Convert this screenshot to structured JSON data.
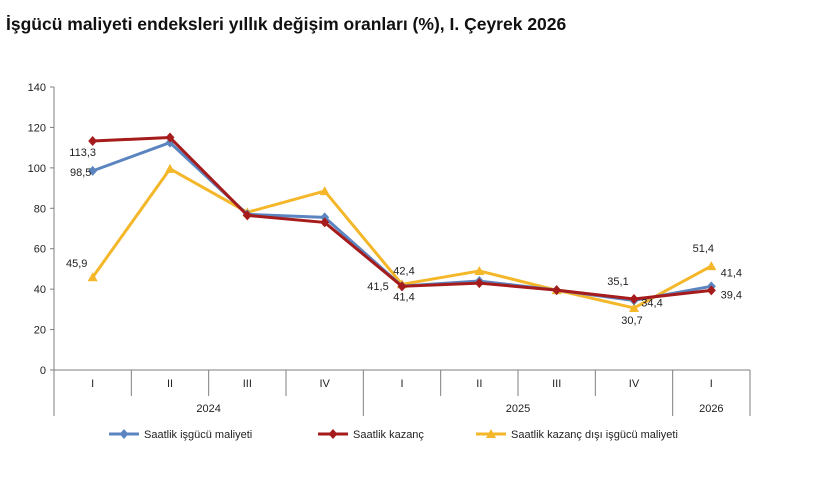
{
  "title": "İşgücü maliyeti endeksleri yıllık değişim oranları (%), I. Çeyrek 2026",
  "colors": {
    "series1": "#5B85C0",
    "series2": "#A61C1C",
    "series3": "#F5B72A",
    "axis": "#7f7f7f"
  },
  "chart_data": {
    "type": "line",
    "categories": [
      "I",
      "II",
      "III",
      "IV",
      "I",
      "II",
      "III",
      "IV",
      "I"
    ],
    "year_groups": [
      {
        "label": "2024",
        "span": 4
      },
      {
        "label": "2025",
        "span": 4
      },
      {
        "label": "2026",
        "span": 1
      }
    ],
    "ylim": [
      0,
      140
    ],
    "yticks": [
      0,
      20,
      40,
      60,
      80,
      100,
      120,
      140
    ],
    "grid": false,
    "legend_position": "bottom",
    "series": [
      {
        "name": "Saatlik işgücü maliyeti",
        "values": [
          98.5,
          112.5,
          77,
          75.5,
          41.5,
          44,
          39.5,
          34.4,
          41.4
        ],
        "marker": "diamond"
      },
      {
        "name": "Saatlik kazanç",
        "values": [
          113.3,
          115,
          76.5,
          73,
          41.4,
          43,
          39.5,
          35.1,
          39.4
        ],
        "marker": "diamond"
      },
      {
        "name": "Saatlik kazanç dışı işgücü maliyeti",
        "values": [
          45.9,
          99.5,
          78,
          88.5,
          42.4,
          49,
          39.5,
          30.7,
          51.4
        ],
        "marker": "triangle"
      }
    ],
    "data_labels": [
      {
        "series": 1,
        "index": 0,
        "text": "113,3",
        "dx": -10,
        "dy": 15
      },
      {
        "series": 0,
        "index": 0,
        "text": "98,5",
        "dx": -12,
        "dy": 5
      },
      {
        "series": 2,
        "index": 0,
        "text": "45,9",
        "dx": -16,
        "dy": -10
      },
      {
        "series": 2,
        "index": 4,
        "text": "42,4",
        "dx": 2,
        "dy": -10
      },
      {
        "series": 0,
        "index": 4,
        "text": "41,5",
        "dx": -24,
        "dy": 4
      },
      {
        "series": 1,
        "index": 4,
        "text": "41,4",
        "dx": 2,
        "dy": 14
      },
      {
        "series": 1,
        "index": 7,
        "text": "35,1",
        "dx": -16,
        "dy": -14
      },
      {
        "series": 0,
        "index": 7,
        "text": "34,4",
        "dx": 18,
        "dy": 6
      },
      {
        "series": 2,
        "index": 7,
        "text": "30,7",
        "dx": -2,
        "dy": 16
      },
      {
        "series": 2,
        "index": 8,
        "text": "51,4",
        "dx": -8,
        "dy": -14
      },
      {
        "series": 0,
        "index": 8,
        "text": "41,4",
        "dx": 20,
        "dy": -10
      },
      {
        "series": 1,
        "index": 8,
        "text": "39,4",
        "dx": 20,
        "dy": 8
      }
    ]
  }
}
